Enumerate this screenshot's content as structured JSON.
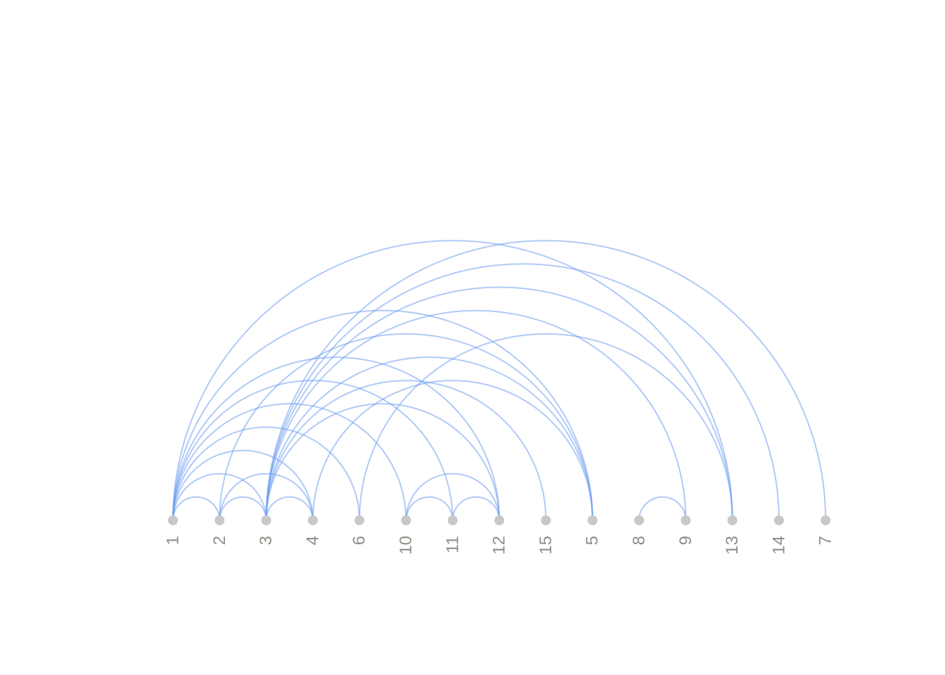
{
  "diagram": {
    "type": "arc-diagram",
    "colors": {
      "edge": "#6f9ef0",
      "node": "#c8c8c8",
      "label": "#8a8f86",
      "background": "#ffffff"
    },
    "nodes": [
      "1",
      "2",
      "3",
      "4",
      "6",
      "10",
      "11",
      "12",
      "15",
      "5",
      "8",
      "9",
      "13",
      "14",
      "7"
    ],
    "edges": [
      [
        "1",
        "2"
      ],
      [
        "1",
        "3"
      ],
      [
        "1",
        "4"
      ],
      [
        "1",
        "6"
      ],
      [
        "1",
        "10"
      ],
      [
        "1",
        "11"
      ],
      [
        "1",
        "12"
      ],
      [
        "1",
        "5"
      ],
      [
        "1",
        "13"
      ],
      [
        "2",
        "3"
      ],
      [
        "2",
        "4"
      ],
      [
        "2",
        "5"
      ],
      [
        "3",
        "4"
      ],
      [
        "3",
        "12"
      ],
      [
        "3",
        "15"
      ],
      [
        "3",
        "5"
      ],
      [
        "3",
        "9"
      ],
      [
        "3",
        "13"
      ],
      [
        "3",
        "14"
      ],
      [
        "3",
        "7"
      ],
      [
        "4",
        "5"
      ],
      [
        "6",
        "13"
      ],
      [
        "10",
        "11"
      ],
      [
        "10",
        "12"
      ],
      [
        "11",
        "12"
      ],
      [
        "8",
        "9"
      ]
    ]
  }
}
